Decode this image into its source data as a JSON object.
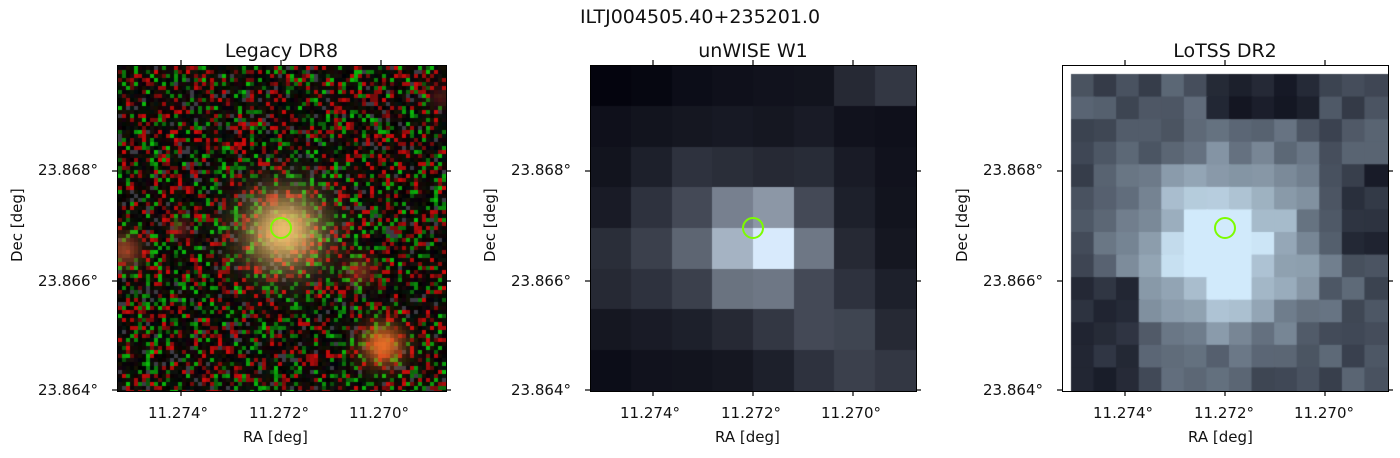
{
  "figure_title": "ILTJ004505.40+235201.0",
  "panels": [
    {
      "title": "Legacy DR8",
      "xlabel": "RA [deg]",
      "ylabel": "Dec [deg]",
      "xticks": [
        "11.274°",
        "11.272°",
        "11.270°"
      ],
      "yticks": [
        "23.868°",
        "23.866°",
        "23.864°"
      ],
      "marker_color": "#7cfc00"
    },
    {
      "title": "unWISE W1",
      "xlabel": "RA [deg]",
      "ylabel": "Dec [deg]",
      "xticks": [
        "11.274°",
        "11.272°",
        "11.270°"
      ],
      "yticks": [
        "23.868°",
        "23.866°",
        "23.864°"
      ],
      "marker_color": "#7cfc00"
    },
    {
      "title": "LoTSS DR2",
      "xlabel": "RA [deg]",
      "ylabel": "Dec [deg]",
      "xticks": [
        "11.274°",
        "11.272°",
        "11.270°"
      ],
      "yticks": [
        "23.868°",
        "23.866°",
        "23.864°"
      ],
      "marker_color": "#7cfc00"
    }
  ]
}
